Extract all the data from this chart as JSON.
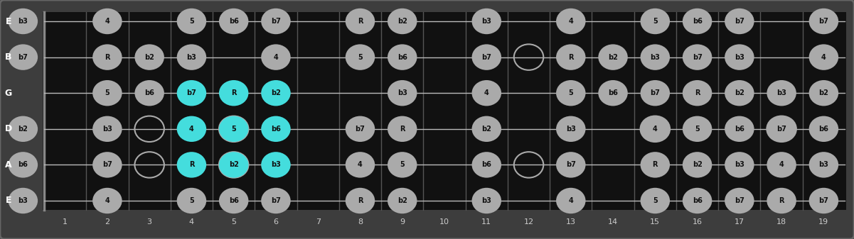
{
  "bg_color": "#3d3d3d",
  "fretboard_color": "#111111",
  "fret_color": "#555555",
  "string_color": "#bbbbbb",
  "nut_color": "#888888",
  "dot_color_normal": "#aaaaaa",
  "dot_color_highlight": "#44dddd",
  "dot_text_color": "#111111",
  "string_label_color": "#ffffff",
  "fret_number_color": "#cccccc",
  "string_labels": [
    "E",
    "B",
    "G",
    "D",
    "A",
    "E"
  ],
  "fret_numbers": [
    1,
    2,
    3,
    4,
    5,
    6,
    7,
    8,
    9,
    10,
    11,
    12,
    13,
    14,
    15,
    16,
    17,
    18,
    19
  ],
  "num_strings": 6,
  "num_frets": 19,
  "open_circles": [
    {
      "fret": 3,
      "string": 3
    },
    {
      "fret": 3,
      "string": 4
    },
    {
      "fret": 5,
      "string": 3
    },
    {
      "fret": 5,
      "string": 4
    },
    {
      "fret": 12,
      "string": 1
    },
    {
      "fret": 12,
      "string": 4
    },
    {
      "fret": 15,
      "string": 3
    },
    {
      "fret": 18,
      "string": 3
    }
  ],
  "notes": [
    {
      "fret": 0,
      "string": 0,
      "label": "b3",
      "highlight": false
    },
    {
      "fret": 0,
      "string": 1,
      "label": "b7",
      "highlight": false
    },
    {
      "fret": 0,
      "string": 3,
      "label": "b2",
      "highlight": false
    },
    {
      "fret": 0,
      "string": 4,
      "label": "b6",
      "highlight": false
    },
    {
      "fret": 0,
      "string": 5,
      "label": "b3",
      "highlight": false
    },
    {
      "fret": 2,
      "string": 0,
      "label": "4",
      "highlight": false
    },
    {
      "fret": 2,
      "string": 1,
      "label": "R",
      "highlight": false
    },
    {
      "fret": 2,
      "string": 2,
      "label": "5",
      "highlight": false
    },
    {
      "fret": 2,
      "string": 3,
      "label": "b3",
      "highlight": false
    },
    {
      "fret": 2,
      "string": 4,
      "label": "b7",
      "highlight": false
    },
    {
      "fret": 2,
      "string": 5,
      "label": "4",
      "highlight": false
    },
    {
      "fret": 3,
      "string": 1,
      "label": "b2",
      "highlight": false
    },
    {
      "fret": 3,
      "string": 2,
      "label": "b6",
      "highlight": false
    },
    {
      "fret": 4,
      "string": 0,
      "label": "5",
      "highlight": false
    },
    {
      "fret": 4,
      "string": 1,
      "label": "b3",
      "highlight": false
    },
    {
      "fret": 4,
      "string": 2,
      "label": "b7",
      "highlight": true
    },
    {
      "fret": 4,
      "string": 3,
      "label": "4",
      "highlight": true
    },
    {
      "fret": 4,
      "string": 4,
      "label": "R",
      "highlight": true
    },
    {
      "fret": 4,
      "string": 5,
      "label": "5",
      "highlight": false
    },
    {
      "fret": 5,
      "string": 0,
      "label": "b6",
      "highlight": false
    },
    {
      "fret": 5,
      "string": 2,
      "label": "R",
      "highlight": true
    },
    {
      "fret": 5,
      "string": 3,
      "label": "5",
      "highlight": true
    },
    {
      "fret": 5,
      "string": 4,
      "label": "b2",
      "highlight": true
    },
    {
      "fret": 5,
      "string": 5,
      "label": "b6",
      "highlight": false
    },
    {
      "fret": 6,
      "string": 0,
      "label": "b7",
      "highlight": false
    },
    {
      "fret": 6,
      "string": 1,
      "label": "4",
      "highlight": false
    },
    {
      "fret": 6,
      "string": 2,
      "label": "b2",
      "highlight": true
    },
    {
      "fret": 6,
      "string": 3,
      "label": "b6",
      "highlight": true
    },
    {
      "fret": 6,
      "string": 4,
      "label": "b3",
      "highlight": true
    },
    {
      "fret": 6,
      "string": 5,
      "label": "b7",
      "highlight": false
    },
    {
      "fret": 8,
      "string": 0,
      "label": "R",
      "highlight": false
    },
    {
      "fret": 8,
      "string": 1,
      "label": "5",
      "highlight": false
    },
    {
      "fret": 8,
      "string": 3,
      "label": "b7",
      "highlight": false
    },
    {
      "fret": 8,
      "string": 4,
      "label": "4",
      "highlight": false
    },
    {
      "fret": 8,
      "string": 5,
      "label": "R",
      "highlight": false
    },
    {
      "fret": 9,
      "string": 0,
      "label": "b2",
      "highlight": false
    },
    {
      "fret": 9,
      "string": 1,
      "label": "b6",
      "highlight": false
    },
    {
      "fret": 9,
      "string": 2,
      "label": "b3",
      "highlight": false
    },
    {
      "fret": 9,
      "string": 3,
      "label": "R",
      "highlight": false
    },
    {
      "fret": 9,
      "string": 4,
      "label": "5",
      "highlight": false
    },
    {
      "fret": 9,
      "string": 5,
      "label": "b2",
      "highlight": false
    },
    {
      "fret": 11,
      "string": 0,
      "label": "b3",
      "highlight": false
    },
    {
      "fret": 11,
      "string": 1,
      "label": "b7",
      "highlight": false
    },
    {
      "fret": 11,
      "string": 2,
      "label": "4",
      "highlight": false
    },
    {
      "fret": 11,
      "string": 3,
      "label": "b2",
      "highlight": false
    },
    {
      "fret": 11,
      "string": 4,
      "label": "b6",
      "highlight": false
    },
    {
      "fret": 11,
      "string": 5,
      "label": "b3",
      "highlight": false
    },
    {
      "fret": 13,
      "string": 0,
      "label": "4",
      "highlight": false
    },
    {
      "fret": 13,
      "string": 1,
      "label": "R",
      "highlight": false
    },
    {
      "fret": 13,
      "string": 2,
      "label": "5",
      "highlight": false
    },
    {
      "fret": 13,
      "string": 3,
      "label": "b3",
      "highlight": false
    },
    {
      "fret": 13,
      "string": 4,
      "label": "b7",
      "highlight": false
    },
    {
      "fret": 13,
      "string": 5,
      "label": "4",
      "highlight": false
    },
    {
      "fret": 14,
      "string": 1,
      "label": "b2",
      "highlight": false
    },
    {
      "fret": 14,
      "string": 2,
      "label": "b6",
      "highlight": false
    },
    {
      "fret": 15,
      "string": 0,
      "label": "5",
      "highlight": false
    },
    {
      "fret": 15,
      "string": 1,
      "label": "b3",
      "highlight": false
    },
    {
      "fret": 15,
      "string": 2,
      "label": "b7",
      "highlight": false
    },
    {
      "fret": 15,
      "string": 3,
      "label": "4",
      "highlight": false
    },
    {
      "fret": 15,
      "string": 4,
      "label": "R",
      "highlight": false
    },
    {
      "fret": 15,
      "string": 5,
      "label": "5",
      "highlight": false
    },
    {
      "fret": 16,
      "string": 0,
      "label": "b6",
      "highlight": false
    },
    {
      "fret": 16,
      "string": 1,
      "label": "b7",
      "highlight": false
    },
    {
      "fret": 16,
      "string": 2,
      "label": "R",
      "highlight": false
    },
    {
      "fret": 16,
      "string": 3,
      "label": "5",
      "highlight": false
    },
    {
      "fret": 16,
      "string": 4,
      "label": "b2",
      "highlight": false
    },
    {
      "fret": 16,
      "string": 5,
      "label": "b6",
      "highlight": false
    },
    {
      "fret": 17,
      "string": 0,
      "label": "b7",
      "highlight": false
    },
    {
      "fret": 17,
      "string": 1,
      "label": "b3",
      "highlight": false
    },
    {
      "fret": 17,
      "string": 2,
      "label": "b2",
      "highlight": false
    },
    {
      "fret": 17,
      "string": 3,
      "label": "b6",
      "highlight": false
    },
    {
      "fret": 17,
      "string": 4,
      "label": "b3",
      "highlight": false
    },
    {
      "fret": 17,
      "string": 5,
      "label": "b7",
      "highlight": false
    },
    {
      "fret": 18,
      "string": 2,
      "label": "b3",
      "highlight": false
    },
    {
      "fret": 18,
      "string": 3,
      "label": "b7",
      "highlight": false
    },
    {
      "fret": 18,
      "string": 4,
      "label": "4",
      "highlight": false
    },
    {
      "fret": 18,
      "string": 5,
      "label": "R",
      "highlight": false
    },
    {
      "fret": 19,
      "string": 0,
      "label": "b7",
      "highlight": false
    },
    {
      "fret": 19,
      "string": 1,
      "label": "4",
      "highlight": false
    },
    {
      "fret": 19,
      "string": 2,
      "label": "b2",
      "highlight": false
    },
    {
      "fret": 19,
      "string": 3,
      "label": "b6",
      "highlight": false
    },
    {
      "fret": 19,
      "string": 4,
      "label": "b3",
      "highlight": false
    },
    {
      "fret": 19,
      "string": 5,
      "label": "b7",
      "highlight": false
    }
  ]
}
